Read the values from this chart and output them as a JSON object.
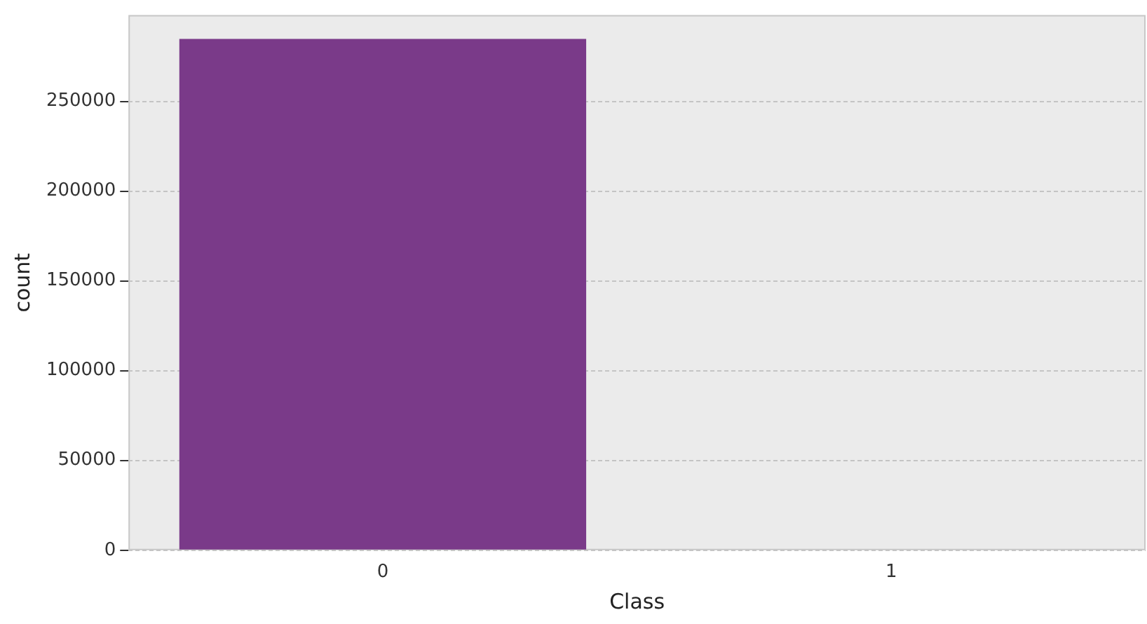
{
  "chart_data": {
    "type": "bar",
    "xlabel": "Class",
    "ylabel": "count",
    "categories": [
      "0",
      "1"
    ],
    "values": [
      284800,
      null
    ],
    "color": "#7a3a89",
    "ylim": [
      0,
      298000
    ],
    "yticks": [
      0,
      50000,
      100000,
      150000,
      200000,
      250000
    ],
    "grid": "y",
    "legend": false
  }
}
